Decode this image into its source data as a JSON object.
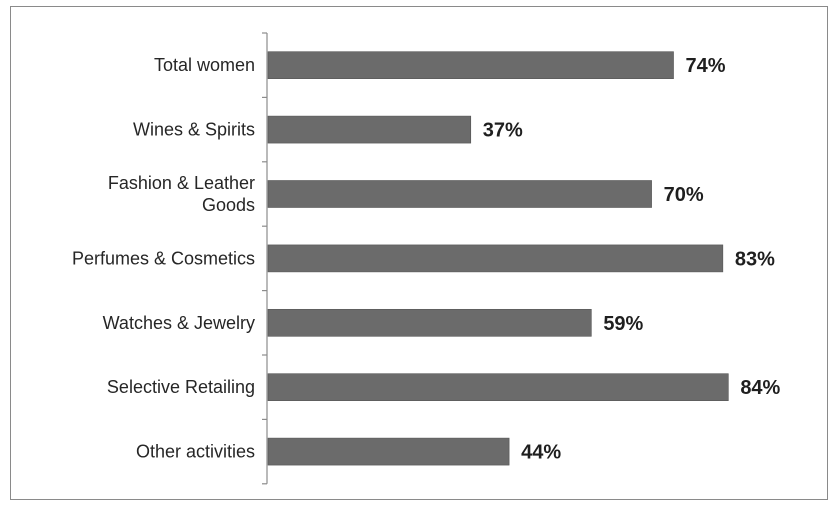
{
  "chart_data": {
    "type": "bar",
    "orientation": "horizontal",
    "categories": [
      "Total women",
      "Wines & Spirits",
      "Fashion & Leather Goods",
      "Perfumes & Cosmetics",
      "Watches & Jewelry",
      "Selective Retailing",
      "Other activities"
    ],
    "category_lines": [
      [
        "Total women"
      ],
      [
        "Wines & Spirits"
      ],
      [
        "Fashion & Leather",
        "Goods"
      ],
      [
        "Perfumes & Cosmetics"
      ],
      [
        "Watches & Jewelry"
      ],
      [
        "Selective Retailing"
      ],
      [
        "Other activities"
      ]
    ],
    "values": [
      74,
      37,
      70,
      83,
      59,
      84,
      44
    ],
    "value_labels": [
      "74%",
      "37%",
      "70%",
      "83%",
      "59%",
      "84%",
      "44%"
    ],
    "xlim": [
      0,
      100
    ],
    "title": "",
    "xlabel": "",
    "ylabel": "",
    "grid": false,
    "legend": "none",
    "colors": {
      "bar": "#6b6b6b",
      "bar_edge": "#555555",
      "axis": "#8c8c8c",
      "text": "#262626"
    }
  }
}
